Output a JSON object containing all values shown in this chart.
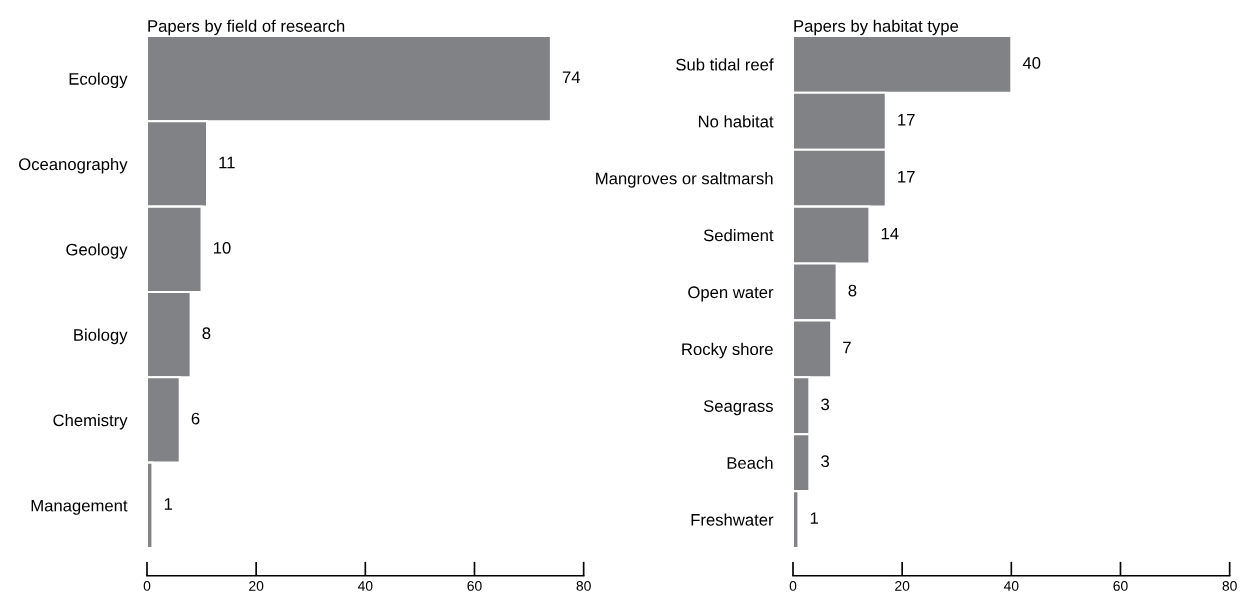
{
  "chart_data": [
    {
      "type": "bar",
      "orientation": "horizontal",
      "title": "Papers by field of research",
      "categories": [
        "Ecology",
        "Oceanography",
        "Geology",
        "Biology",
        "Chemistry",
        "Management"
      ],
      "values": [
        74,
        11,
        10,
        8,
        6,
        1
      ],
      "color": "#808285",
      "xlim": [
        0,
        80
      ],
      "xticks": [
        0,
        20,
        40,
        60,
        80
      ],
      "data_labels": true,
      "grid": false,
      "legend": false
    },
    {
      "type": "bar",
      "orientation": "horizontal",
      "title": "Papers by habitat type",
      "categories": [
        "Sub tidal reef",
        "No habitat",
        "Mangroves or saltmarsh",
        "Sediment",
        "Open water",
        "Rocky shore",
        "Seagrass",
        "Beach",
        "Freshwater"
      ],
      "values": [
        40,
        17,
        17,
        14,
        8,
        7,
        3,
        3,
        1
      ],
      "color": "#808285",
      "xlim": [
        0,
        80
      ],
      "xticks": [
        0,
        20,
        40,
        60,
        80
      ],
      "data_labels": true,
      "grid": false,
      "legend": false
    }
  ]
}
